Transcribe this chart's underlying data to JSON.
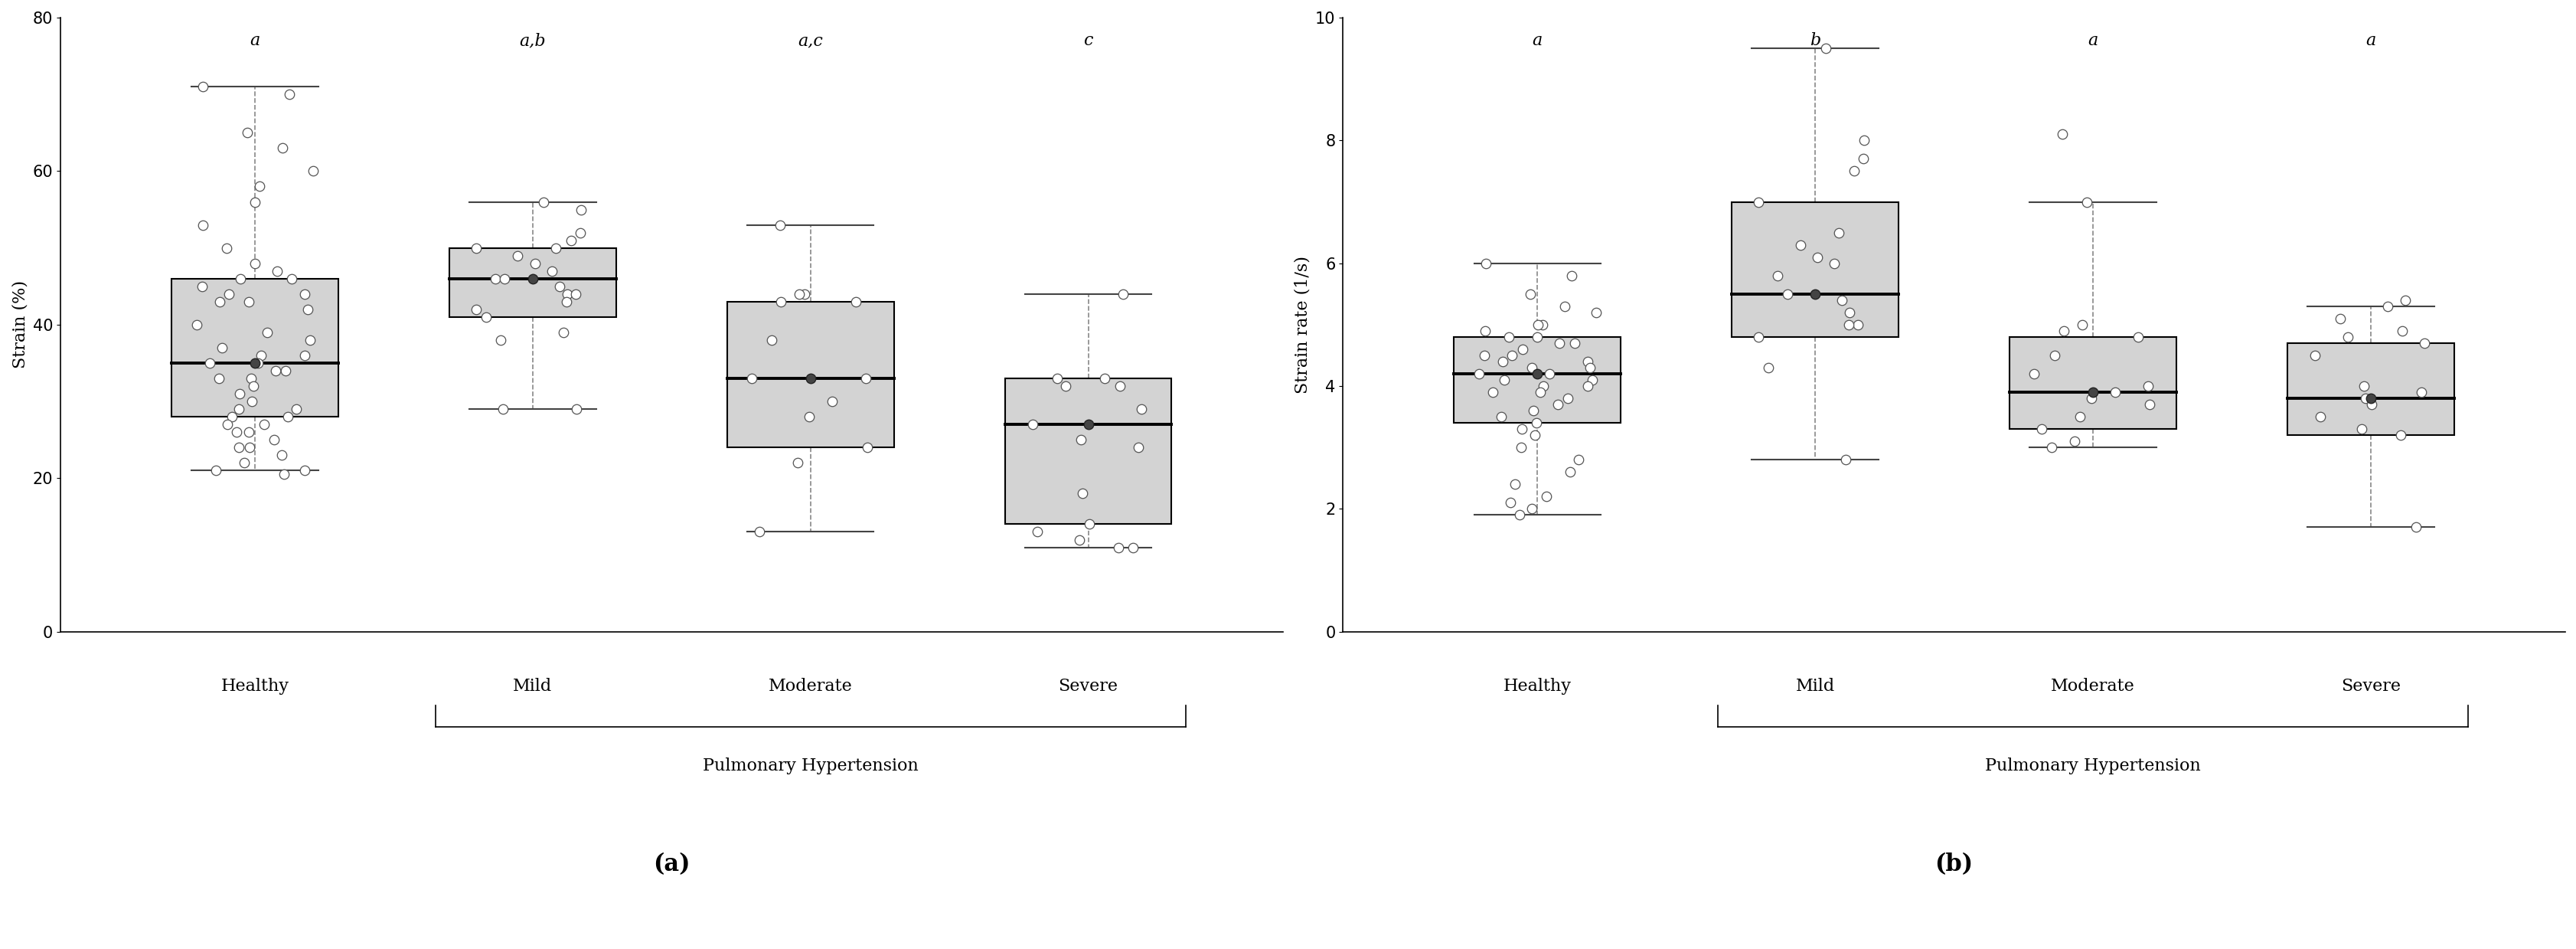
{
  "panel_a": {
    "ylabel": "Strain (%)",
    "xlabel": "Pulmonary Hypertension",
    "ylim": [
      0,
      80
    ],
    "yticks": [
      0,
      20,
      40,
      60,
      80
    ],
    "categories": [
      "Healthy",
      "Mild",
      "Moderate",
      "Severe"
    ],
    "sig_labels": [
      "a",
      "a,b",
      "a,c",
      "c"
    ],
    "boxes": [
      {
        "q1": 28,
        "median": 35,
        "q3": 46,
        "whislo": 21,
        "whishi": 71,
        "mean": 35,
        "jitter": [
          71,
          70,
          65,
          63,
          60,
          58,
          56,
          53,
          50,
          48,
          47,
          46,
          46,
          45,
          44,
          44,
          43,
          43,
          42,
          40,
          39,
          38,
          37,
          36,
          36,
          35,
          35,
          34,
          34,
          33,
          33,
          32,
          31,
          30,
          29,
          29,
          28,
          28,
          27,
          27,
          26,
          26,
          25,
          24,
          24,
          23,
          22,
          21,
          21,
          20.5
        ]
      },
      {
        "q1": 41,
        "median": 46,
        "q3": 50,
        "whislo": 29,
        "whishi": 56,
        "mean": 46,
        "jitter": [
          56,
          55,
          52,
          51,
          50,
          50,
          49,
          48,
          47,
          46,
          46,
          45,
          44,
          44,
          43,
          42,
          41,
          39,
          38,
          29,
          29
        ]
      },
      {
        "q1": 24,
        "median": 33,
        "q3": 43,
        "whislo": 13,
        "whishi": 53,
        "mean": 33,
        "jitter": [
          53,
          44,
          44,
          43,
          43,
          38,
          33,
          33,
          30,
          28,
          24,
          22,
          13
        ]
      },
      {
        "q1": 14,
        "median": 27,
        "q3": 33,
        "whislo": 11,
        "whishi": 44,
        "mean": 27,
        "jitter": [
          44,
          33,
          33,
          32,
          32,
          29,
          27,
          25,
          24,
          18,
          14,
          13,
          12,
          11,
          11
        ]
      }
    ],
    "panel_label": "(a)"
  },
  "panel_b": {
    "ylabel": "Strain rate (1/s)",
    "xlabel": "Pulmonary Hypertension",
    "ylim": [
      0,
      10
    ],
    "yticks": [
      0,
      2,
      4,
      6,
      8,
      10
    ],
    "categories": [
      "Healthy",
      "Mild",
      "Moderate",
      "Severe"
    ],
    "sig_labels": [
      "a",
      "b",
      "a",
      "a"
    ],
    "boxes": [
      {
        "q1": 3.4,
        "median": 4.2,
        "q3": 4.8,
        "whislo": 1.9,
        "whishi": 6.0,
        "mean": 4.2,
        "jitter": [
          6.0,
          5.8,
          5.5,
          5.3,
          5.2,
          5.0,
          5.0,
          4.9,
          4.8,
          4.8,
          4.7,
          4.7,
          4.6,
          4.5,
          4.5,
          4.4,
          4.4,
          4.3,
          4.3,
          4.2,
          4.2,
          4.1,
          4.1,
          4.0,
          4.0,
          3.9,
          3.9,
          3.8,
          3.7,
          3.6,
          3.5,
          3.4,
          3.3,
          3.2,
          3.0,
          2.8,
          2.6,
          2.4,
          2.2,
          2.1,
          2.0,
          1.9
        ]
      },
      {
        "q1": 4.8,
        "median": 5.5,
        "q3": 7.0,
        "whislo": 2.8,
        "whishi": 9.5,
        "mean": 5.5,
        "jitter": [
          9.5,
          8.0,
          7.7,
          7.5,
          7.0,
          6.5,
          6.3,
          6.1,
          6.0,
          5.8,
          5.5,
          5.4,
          5.2,
          5.0,
          5.0,
          4.8,
          4.3,
          2.8
        ]
      },
      {
        "q1": 3.3,
        "median": 3.9,
        "q3": 4.8,
        "whislo": 3.0,
        "whishi": 7.0,
        "mean": 3.9,
        "jitter": [
          8.1,
          7.0,
          5.0,
          4.9,
          4.8,
          4.5,
          4.2,
          4.0,
          3.9,
          3.8,
          3.7,
          3.5,
          3.3,
          3.1,
          3.0
        ]
      },
      {
        "q1": 3.2,
        "median": 3.8,
        "q3": 4.7,
        "whislo": 1.7,
        "whishi": 5.3,
        "mean": 3.8,
        "jitter": [
          5.4,
          5.3,
          5.1,
          4.9,
          4.8,
          4.7,
          4.5,
          4.0,
          3.9,
          3.8,
          3.7,
          3.5,
          3.3,
          3.2,
          1.7
        ]
      }
    ],
    "panel_label": "(b)"
  },
  "box_color": "#d3d3d3",
  "box_edge_color": "#000000",
  "whisker_color": "#888888",
  "median_color": "#000000",
  "sig_fontsize": 16,
  "axis_label_fontsize": 16,
  "tick_fontsize": 15,
  "panel_label_fontsize": 22,
  "cat_label_fontsize": 16,
  "ph_label_fontsize": 16
}
